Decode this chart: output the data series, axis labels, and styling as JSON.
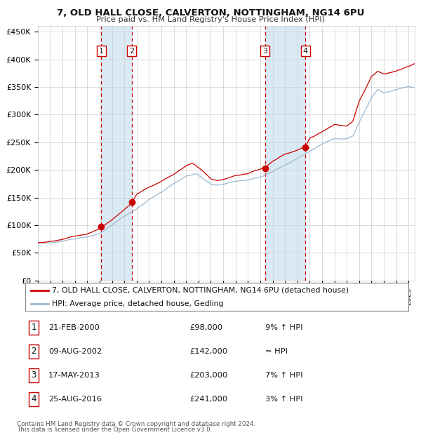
{
  "title1": "7, OLD HALL CLOSE, CALVERTON, NOTTINGHAM, NG14 6PU",
  "title2": "Price paid vs. HM Land Registry's House Price Index (HPI)",
  "ylabel_ticks": [
    "£0",
    "£50K",
    "£100K",
    "£150K",
    "£200K",
    "£250K",
    "£300K",
    "£350K",
    "£400K",
    "£450K"
  ],
  "ytick_vals": [
    0,
    50000,
    100000,
    150000,
    200000,
    250000,
    300000,
    350000,
    400000,
    450000
  ],
  "ylim": [
    0,
    460000
  ],
  "xlim_start": 1995.0,
  "xlim_end": 2025.5,
  "sale_points": [
    {
      "label": "1",
      "date_dec": 2000.13,
      "price": 98000
    },
    {
      "label": "2",
      "date_dec": 2002.6,
      "price": 142000
    },
    {
      "label": "3",
      "date_dec": 2013.38,
      "price": 203000
    },
    {
      "label": "4",
      "date_dec": 2016.65,
      "price": 241000
    }
  ],
  "hpi_color": "#9ab8d0",
  "price_color": "#cc0000",
  "dot_color": "#cc0000",
  "shade_color": "#daeaf5",
  "vline_color": "#cc0000",
  "grid_color": "#cccccc",
  "bg_color": "#ffffff",
  "legend_label_red": "7, OLD HALL CLOSE, CALVERTON, NOTTINGHAM, NG14 6PU (detached house)",
  "legend_label_blue": "HPI: Average price, detached house, Gedling",
  "footer1": "Contains HM Land Registry data © Crown copyright and database right 2024.",
  "footer2": "This data is licensed under the Open Government Licence v3.0.",
  "table_rows": [
    [
      "1",
      "21-FEB-2000",
      "£98,000",
      "9% ↑ HPI"
    ],
    [
      "2",
      "09-AUG-2002",
      "£142,000",
      "≈ HPI"
    ],
    [
      "3",
      "17-MAY-2013",
      "£203,000",
      "7% ↑ HPI"
    ],
    [
      "4",
      "25-AUG-2016",
      "£241,000",
      "3% ↑ HPI"
    ]
  ],
  "hpi_anchors_x": [
    1995,
    1996,
    1997,
    1998,
    1999,
    2000,
    2001,
    2002,
    2003,
    2004,
    2005,
    2006,
    2007,
    2007.8,
    2008,
    2009,
    2009.5,
    2010,
    2011,
    2012,
    2013,
    2014,
    2015,
    2016,
    2017,
    2018,
    2019,
    2020,
    2020.5,
    2021,
    2022,
    2022.5,
    2023,
    2024,
    2025,
    2025.5
  ],
  "hpi_anchors_y": [
    70000,
    72000,
    75000,
    78000,
    82000,
    89000,
    103000,
    118000,
    130000,
    148000,
    160000,
    175000,
    188000,
    193000,
    190000,
    172000,
    170000,
    172000,
    177000,
    180000,
    185000,
    195000,
    208000,
    220000,
    232000,
    245000,
    255000,
    255000,
    260000,
    285000,
    330000,
    345000,
    340000,
    345000,
    350000,
    348000
  ],
  "price_anchors_x": [
    1995,
    1996,
    1997,
    1998,
    1999,
    2000.13,
    2001,
    2002.6,
    2003,
    2004,
    2005,
    2006,
    2007,
    2007.5,
    2008,
    2009,
    2009.5,
    2010,
    2011,
    2012,
    2013.38,
    2014,
    2015,
    2016.65,
    2017,
    2018,
    2019,
    2020,
    2020.5,
    2021,
    2022,
    2022.5,
    2023,
    2024,
    2025,
    2025.5
  ],
  "price_anchors_y": [
    74000,
    76000,
    79000,
    83000,
    87000,
    98000,
    112000,
    142000,
    158000,
    170000,
    180000,
    193000,
    207000,
    212000,
    204000,
    183000,
    180000,
    183000,
    189000,
    193000,
    203000,
    215000,
    228000,
    241000,
    256000,
    268000,
    280000,
    276000,
    285000,
    320000,
    365000,
    375000,
    370000,
    375000,
    385000,
    390000
  ]
}
